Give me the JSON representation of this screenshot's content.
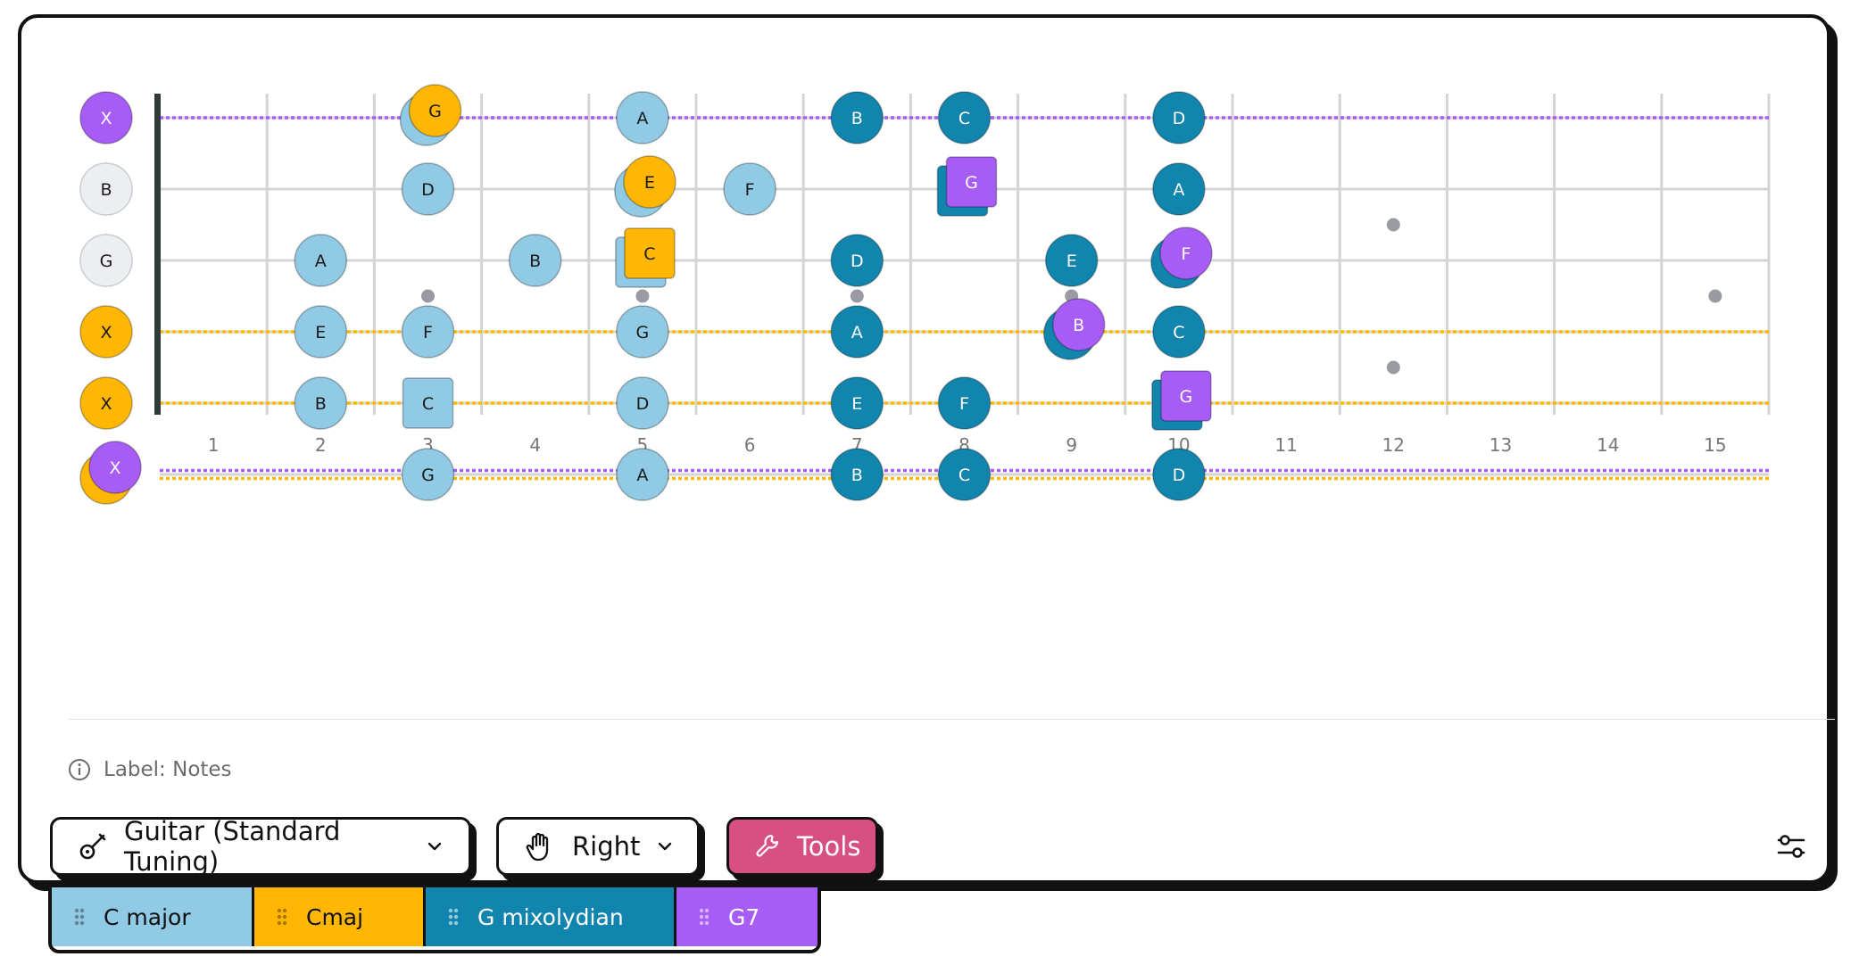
{
  "fretboard": {
    "fret_count": 15,
    "fret_numbers": [
      "1",
      "2",
      "3",
      "4",
      "5",
      "6",
      "7",
      "8",
      "9",
      "10",
      "11",
      "12",
      "13",
      "14",
      "15"
    ],
    "single_inlays": [
      3,
      5,
      7,
      9,
      15
    ],
    "double_inlays": [
      12
    ],
    "colors": {
      "c_major": "#91cae5",
      "cmaj": "#ffb703",
      "g_mixolydian": "#1185ad",
      "g7": "#a75cf6",
      "string": "#d4d4d4",
      "fret": "#d4d4d4",
      "nut": "#2f3b36",
      "inlay": "#9a9aa2",
      "open_gray": "#eceef1"
    },
    "open_strings": [
      {
        "string": 0,
        "label": "X",
        "kind": "g7"
      },
      {
        "string": 1,
        "label": "B",
        "kind": "open"
      },
      {
        "string": 2,
        "label": "G",
        "kind": "open"
      },
      {
        "string": 3,
        "label": "X",
        "kind": "cmaj"
      },
      {
        "string": 4,
        "label": "X",
        "kind": "cmaj"
      },
      {
        "string": 5,
        "label": "X",
        "kind": "cmaj-g7"
      }
    ],
    "muted_lines": [
      {
        "string": 0,
        "colors": [
          "g7"
        ]
      },
      {
        "string": 3,
        "colors": [
          "cmaj"
        ]
      },
      {
        "string": 4,
        "colors": [
          "cmaj"
        ]
      },
      {
        "string": 5,
        "colors": [
          "g7",
          "cmaj"
        ]
      }
    ],
    "notes": [
      {
        "string": 0,
        "fret": 3,
        "label": "G",
        "back": "c_major",
        "front": "cmaj",
        "shape": "circle"
      },
      {
        "string": 0,
        "fret": 5,
        "label": "A",
        "base": "c_major",
        "shape": "circle"
      },
      {
        "string": 0,
        "fret": 7,
        "label": "B",
        "base": "g_mixolydian",
        "shape": "circle"
      },
      {
        "string": 0,
        "fret": 8,
        "label": "C",
        "base": "g_mixolydian",
        "shape": "circle"
      },
      {
        "string": 0,
        "fret": 10,
        "label": "D",
        "base": "g_mixolydian",
        "shape": "circle"
      },
      {
        "string": 1,
        "fret": 3,
        "label": "D",
        "base": "c_major",
        "shape": "circle"
      },
      {
        "string": 1,
        "fret": 5,
        "label": "E",
        "back": "c_major",
        "front": "cmaj",
        "shape": "circle"
      },
      {
        "string": 1,
        "fret": 6,
        "label": "F",
        "base": "c_major",
        "shape": "circle"
      },
      {
        "string": 1,
        "fret": 8,
        "label": "G",
        "back": "g_mixolydian",
        "front": "g7",
        "shape": "square"
      },
      {
        "string": 1,
        "fret": 10,
        "label": "A",
        "base": "g_mixolydian",
        "shape": "circle"
      },
      {
        "string": 2,
        "fret": 2,
        "label": "A",
        "base": "c_major",
        "shape": "circle"
      },
      {
        "string": 2,
        "fret": 4,
        "label": "B",
        "base": "c_major",
        "shape": "circle"
      },
      {
        "string": 2,
        "fret": 5,
        "label": "C",
        "back": "c_major",
        "front": "cmaj",
        "shape": "square"
      },
      {
        "string": 2,
        "fret": 7,
        "label": "D",
        "base": "g_mixolydian",
        "shape": "circle"
      },
      {
        "string": 2,
        "fret": 9,
        "label": "E",
        "base": "g_mixolydian",
        "shape": "circle"
      },
      {
        "string": 2,
        "fret": 10,
        "label": "F",
        "back": "g_mixolydian",
        "front": "g7",
        "shape": "circle"
      },
      {
        "string": 3,
        "fret": 2,
        "label": "E",
        "base": "c_major",
        "shape": "circle"
      },
      {
        "string": 3,
        "fret": 3,
        "label": "F",
        "base": "c_major",
        "shape": "circle"
      },
      {
        "string": 3,
        "fret": 5,
        "label": "G",
        "base": "c_major",
        "shape": "circle"
      },
      {
        "string": 3,
        "fret": 7,
        "label": "A",
        "base": "g_mixolydian",
        "shape": "circle"
      },
      {
        "string": 3,
        "fret": 9,
        "label": "B",
        "back": "g_mixolydian",
        "front": "g7",
        "shape": "circle"
      },
      {
        "string": 3,
        "fret": 10,
        "label": "C",
        "base": "g_mixolydian",
        "shape": "circle"
      },
      {
        "string": 4,
        "fret": 2,
        "label": "B",
        "base": "c_major",
        "shape": "circle"
      },
      {
        "string": 4,
        "fret": 3,
        "label": "C",
        "base": "c_major",
        "shape": "square"
      },
      {
        "string": 4,
        "fret": 5,
        "label": "D",
        "base": "c_major",
        "shape": "circle"
      },
      {
        "string": 4,
        "fret": 7,
        "label": "E",
        "base": "g_mixolydian",
        "shape": "circle"
      },
      {
        "string": 4,
        "fret": 8,
        "label": "F",
        "base": "g_mixolydian",
        "shape": "circle"
      },
      {
        "string": 4,
        "fret": 10,
        "label": "G",
        "back": "g_mixolydian",
        "front": "g7",
        "shape": "square"
      },
      {
        "string": 5,
        "fret": 3,
        "label": "G",
        "base": "c_major",
        "shape": "circle"
      },
      {
        "string": 5,
        "fret": 5,
        "label": "A",
        "base": "c_major",
        "shape": "circle"
      },
      {
        "string": 5,
        "fret": 7,
        "label": "B",
        "base": "g_mixolydian",
        "shape": "circle"
      },
      {
        "string": 5,
        "fret": 8,
        "label": "C",
        "base": "g_mixolydian",
        "shape": "circle"
      },
      {
        "string": 5,
        "fret": 10,
        "label": "D",
        "base": "g_mixolydian",
        "shape": "circle"
      }
    ]
  },
  "label_info": {
    "text": "Label: Notes",
    "icon": "info-icon"
  },
  "controls": {
    "instrument": {
      "label": "Guitar (Standard Tuning)",
      "icon": "guitar-icon"
    },
    "hand": {
      "label": "Right",
      "icon": "hand-icon"
    },
    "tools": {
      "label": "Tools",
      "icon": "wrench-icon"
    },
    "settings": {
      "icon": "sliders-icon"
    }
  },
  "legend": [
    {
      "label": "C major",
      "color": "#91cae5",
      "text_color": "#111111"
    },
    {
      "label": "Cmaj",
      "color": "#ffb703",
      "text_color": "#111111"
    },
    {
      "label": "G mixolydian",
      "color": "#1185ad",
      "text_color": "#ffffff"
    },
    {
      "label": "G7",
      "color": "#a75cf6",
      "text_color": "#ffffff"
    }
  ]
}
